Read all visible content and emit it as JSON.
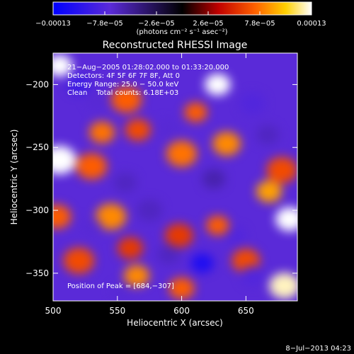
{
  "chart_data": {
    "type": "heatmap",
    "title": "Reconstructed RHESSI Image",
    "xlabel": "Heliocentric X (arcsec)",
    "ylabel": "Heliocentric Y (arcsec)",
    "xlim": [
      500,
      690
    ],
    "ylim": [
      -372,
      -175
    ],
    "x_ticks": [
      {
        "value": 500,
        "label": "500"
      },
      {
        "value": 550,
        "label": "550"
      },
      {
        "value": 600,
        "label": "600"
      },
      {
        "value": 650,
        "label": "650"
      }
    ],
    "y_ticks": [
      {
        "value": -200,
        "label": "−200"
      },
      {
        "value": -250,
        "label": "−250"
      },
      {
        "value": -300,
        "label": "−300"
      },
      {
        "value": -350,
        "label": "−350"
      }
    ],
    "colorbar": {
      "range": [
        -0.00013,
        0.00013
      ],
      "ticks": [
        {
          "value": -0.00013,
          "label": "−0.00013"
        },
        {
          "value": -7.8e-05,
          "label": "−7.8e−05"
        },
        {
          "value": -2.6e-05,
          "label": "−2.6e−05"
        },
        {
          "value": 2.6e-05,
          "label": "2.6e−05"
        },
        {
          "value": 7.8e-05,
          "label": "7.8e−05"
        },
        {
          "value": 0.00013,
          "label": "0.00013"
        }
      ],
      "units_label": "(photons cm⁻² s⁻¹ asec⁻²)",
      "colormap": [
        "#0000ff",
        "#5a2ad8",
        "#000000",
        "#c00000",
        "#ff6000",
        "#ffd000",
        "#ffffff"
      ]
    },
    "annotations": [
      "21−Aug−2005 01:28:02.000 to 01:33:20.000",
      "Detectors: 4F 5F 6F 7F 8F, Att 0",
      "Energy Range: 25.0 − 50.0 keV",
      "Clean    Total counts: 6.18E+03"
    ],
    "peak_label": "Position of Peak = [684,−307]",
    "blobs": [
      {
        "x": 505,
        "y": -185,
        "v": 1.0,
        "s": 10
      },
      {
        "x": 628,
        "y": -200,
        "v": 1.0,
        "s": 10
      },
      {
        "x": 611,
        "y": -222,
        "v": 0.55,
        "s": 9
      },
      {
        "x": 557,
        "y": -212,
        "v": 0.55,
        "s": 12
      },
      {
        "x": 538,
        "y": -238,
        "v": 0.6,
        "s": 10
      },
      {
        "x": 566,
        "y": -236,
        "v": 0.5,
        "s": 10
      },
      {
        "x": 600,
        "y": -255,
        "v": 0.6,
        "s": 12
      },
      {
        "x": 635,
        "y": -247,
        "v": 0.65,
        "s": 11
      },
      {
        "x": 678,
        "y": -268,
        "v": 0.5,
        "s": 12
      },
      {
        "x": 505,
        "y": -260,
        "v": 1.0,
        "s": 13
      },
      {
        "x": 530,
        "y": -265,
        "v": 0.55,
        "s": 12
      },
      {
        "x": 545,
        "y": -305,
        "v": 0.65,
        "s": 12
      },
      {
        "x": 598,
        "y": -320,
        "v": 0.45,
        "s": 11
      },
      {
        "x": 628,
        "y": -312,
        "v": 0.55,
        "s": 9
      },
      {
        "x": 684,
        "y": -307,
        "v": 1.0,
        "s": 11
      },
      {
        "x": 668,
        "y": -285,
        "v": 0.7,
        "s": 10
      },
      {
        "x": 503,
        "y": -305,
        "v": 0.55,
        "s": 11
      },
      {
        "x": 520,
        "y": -340,
        "v": 0.5,
        "s": 12
      },
      {
        "x": 565,
        "y": -352,
        "v": 0.65,
        "s": 10
      },
      {
        "x": 600,
        "y": -362,
        "v": 0.55,
        "s": 10
      },
      {
        "x": 650,
        "y": -340,
        "v": 0.5,
        "s": 11
      },
      {
        "x": 680,
        "y": -360,
        "v": 0.95,
        "s": 12
      },
      {
        "x": 560,
        "y": -330,
        "v": 0.45,
        "s": 10
      },
      {
        "x": 520,
        "y": -200,
        "v": -0.7,
        "s": 9
      },
      {
        "x": 535,
        "y": -212,
        "v": -0.55,
        "s": 9
      },
      {
        "x": 590,
        "y": -235,
        "v": -0.55,
        "s": 9
      },
      {
        "x": 655,
        "y": -215,
        "v": -0.6,
        "s": 10
      },
      {
        "x": 667,
        "y": -240,
        "v": -0.5,
        "s": 9
      },
      {
        "x": 625,
        "y": -275,
        "v": -0.45,
        "s": 9
      },
      {
        "x": 556,
        "y": -278,
        "v": -0.5,
        "s": 9
      },
      {
        "x": 530,
        "y": -313,
        "v": -0.55,
        "s": 8
      },
      {
        "x": 575,
        "y": -300,
        "v": -0.5,
        "s": 10
      },
      {
        "x": 616,
        "y": -342,
        "v": -0.85,
        "s": 9
      },
      {
        "x": 655,
        "y": -352,
        "v": -0.6,
        "s": 9
      },
      {
        "x": 553,
        "y": -365,
        "v": -0.55,
        "s": 8
      },
      {
        "x": 642,
        "y": -320,
        "v": -0.6,
        "s": 8
      },
      {
        "x": 590,
        "y": -335,
        "v": -0.5,
        "s": 9
      }
    ]
  },
  "footer": {
    "timestamp": "8−Jul−2013 04:23"
  }
}
